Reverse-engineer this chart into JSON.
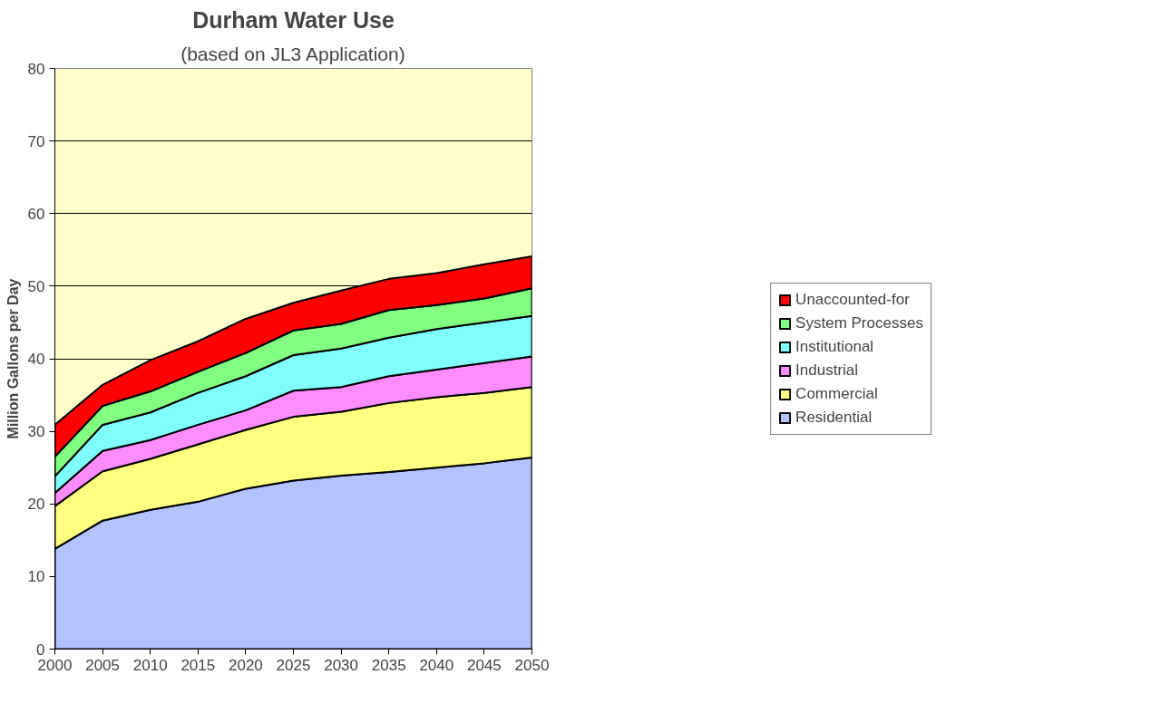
{
  "chart_data": {
    "type": "area",
    "stacked": true,
    "title": "Durham Water Use",
    "subtitle": "(based on JL3 Application)",
    "ylabel": "Million Gallons per Day",
    "x": [
      2000,
      2005,
      2010,
      2015,
      2020,
      2025,
      2030,
      2035,
      2040,
      2045,
      2050
    ],
    "xlim": [
      2000,
      2050
    ],
    "xticks": [
      2000,
      2005,
      2010,
      2015,
      2020,
      2025,
      2030,
      2035,
      2040,
      2045,
      2050
    ],
    "ylim": [
      0,
      80
    ],
    "yticks": [
      0,
      10,
      20,
      30,
      40,
      50,
      60,
      70,
      80
    ],
    "grid": "y",
    "legend": "right",
    "series": [
      {
        "name": "Residential",
        "color": "#b3c3ff",
        "values": [
          13.8,
          17.7,
          19.2,
          20.3,
          22.1,
          23.2,
          23.9,
          24.4,
          25.0,
          25.6,
          26.4
        ]
      },
      {
        "name": "Commercial",
        "color": "#ffff80",
        "values": [
          5.9,
          6.8,
          7.0,
          7.9,
          8.1,
          8.8,
          8.8,
          9.5,
          9.7,
          9.7,
          9.7
        ]
      },
      {
        "name": "Industrial",
        "color": "#ff8cff",
        "values": [
          1.8,
          2.8,
          2.6,
          2.7,
          2.7,
          3.6,
          3.4,
          3.7,
          3.8,
          4.1,
          4.2
        ]
      },
      {
        "name": "Institutional",
        "color": "#80ffff",
        "values": [
          2.3,
          3.6,
          3.8,
          4.4,
          4.7,
          4.9,
          5.3,
          5.3,
          5.6,
          5.6,
          5.6
        ]
      },
      {
        "name": "System Processes",
        "color": "#80ff80",
        "values": [
          2.7,
          2.6,
          2.9,
          2.9,
          3.2,
          3.4,
          3.4,
          3.8,
          3.3,
          3.3,
          3.8
        ]
      },
      {
        "name": "Unaccounted-for",
        "color": "#ff0000",
        "values": [
          4.4,
          2.9,
          4.3,
          4.2,
          4.7,
          3.8,
          4.6,
          4.3,
          4.4,
          4.7,
          4.4
        ]
      }
    ]
  }
}
